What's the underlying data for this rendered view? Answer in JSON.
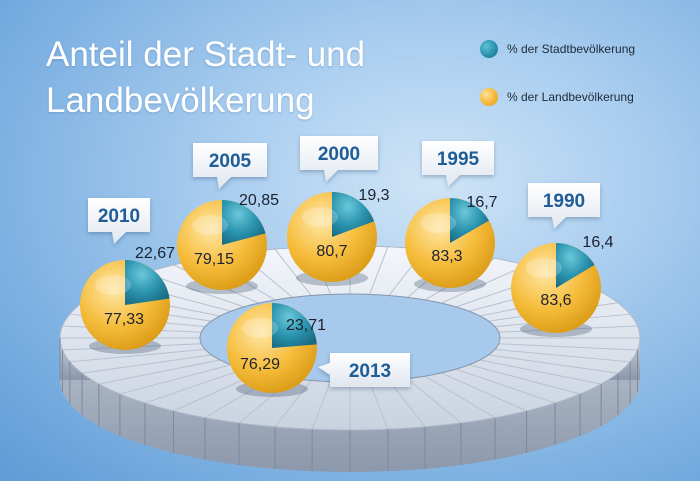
{
  "chart_data": {
    "type": "pie",
    "title": "Anteil der Stadt- und Landbevölkerung",
    "legend": [
      "% der Stadtbevölkerung",
      "% der Landbevölkerung"
    ],
    "legend_position": "top-right",
    "colors": {
      "stadt": "#2892ad",
      "land": "#f5b733"
    },
    "series": [
      {
        "year": "2010",
        "stadt": 22.67,
        "land": 77.33,
        "stadt_label": "22,67",
        "land_label": "77,33"
      },
      {
        "year": "2005",
        "stadt": 20.85,
        "land": 79.15,
        "stadt_label": "20,85",
        "land_label": "79,15"
      },
      {
        "year": "2000",
        "stadt": 19.3,
        "land": 80.7,
        "stadt_label": "19,3",
        "land_label": "80,7"
      },
      {
        "year": "1995",
        "stadt": 16.7,
        "land": 83.3,
        "stadt_label": "16,7",
        "land_label": "83,3"
      },
      {
        "year": "1990",
        "stadt": 16.4,
        "land": 83.6,
        "stadt_label": "16,4",
        "land_label": "83,6"
      },
      {
        "year": "2013",
        "stadt": 23.71,
        "land": 76.29,
        "stadt_label": "23,71",
        "land_label": "76,29"
      }
    ]
  }
}
